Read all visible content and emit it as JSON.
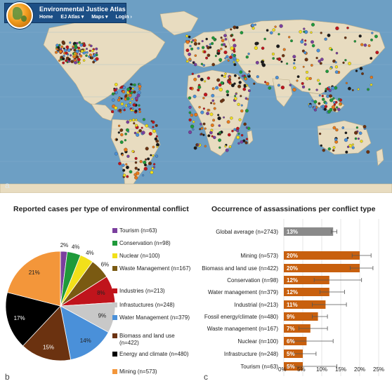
{
  "map_panel": {
    "label": "a",
    "site": {
      "title": "Environmental Justice Atlas",
      "nav": [
        "Home",
        "EJ Atlas ▾",
        "Maps ▾",
        "Login ›"
      ]
    },
    "colors": {
      "ocean": "#6d9fc4",
      "land": "#e8dcc0",
      "header": "#1c4f86"
    }
  },
  "pie_panel": {
    "label": "b",
    "chart_data": {
      "type": "pie",
      "title": "Reported cases per type of environmental conflict",
      "slices": [
        {
          "name": "Tourism (n=63)",
          "value": 2,
          "label": "2%",
          "color": "#7b3f9e"
        },
        {
          "name": "Conservation (n=98)",
          "value": 4,
          "label": "4%",
          "color": "#1f9a3a"
        },
        {
          "name": "Nuclear (n=100)",
          "value": 4,
          "label": "4%",
          "color": "#f2e01a"
        },
        {
          "name": "Waste Management (n=167)",
          "value": 6,
          "label": "6%",
          "color": "#7a5a12"
        },
        {
          "name": "Industries (n=213)",
          "value": 8,
          "label": "8%",
          "color": "#c0141c"
        },
        {
          "name": "Infrastuctures (n=248)",
          "value": 9,
          "label": "9%",
          "color": "#c8c8c8"
        },
        {
          "name": "Water Management (n=379)",
          "value": 14,
          "label": "14%",
          "color": "#4a90d9"
        },
        {
          "name": "Biomass and land use (n=422)",
          "value": 15,
          "label": "15%",
          "color": "#6b3210"
        },
        {
          "name": "Energy and climate (n=480)",
          "value": 17,
          "label": "17%",
          "color": "#000000"
        },
        {
          "name": "Mining (n=573)",
          "value": 21,
          "label": "21%",
          "color": "#f3963a"
        }
      ]
    }
  },
  "bar_panel": {
    "label": "c",
    "chart_data": {
      "type": "bar",
      "orientation": "horizontal",
      "title": "Occurrence of assassinations per conflict type",
      "categories": [
        "Global average (n=2743)",
        "Mining (n=573)",
        "Biomass and land use (n=422)",
        "Conservation (n=98)",
        "Water management (n=379)",
        "Industrial (n=213)",
        "Fossil energy/climate (n=480)",
        "Waste management (n=167)",
        "Nuclear (n=100)",
        "Infrastructure (n=248)",
        "Tourism (n=63)"
      ],
      "values": [
        13,
        20,
        20,
        12,
        12,
        11,
        9,
        7,
        6,
        5,
        5
      ],
      "value_labels": [
        "13%",
        "20%",
        "20%",
        "12%",
        "12%",
        "11%",
        "9%",
        "7%",
        "6%",
        "5%",
        "5%"
      ],
      "error_high": [
        14,
        23,
        23.5,
        20.5,
        16,
        16.5,
        11.5,
        11.5,
        13,
        8.5,
        14
      ],
      "error_low": [
        12.5,
        18,
        17.5,
        8,
        9.5,
        7.5,
        7.5,
        4,
        2.5,
        2.5,
        1
      ],
      "xticks": [
        "0%",
        "5%",
        "10%",
        "15%",
        "20%",
        "25%"
      ],
      "xlim": [
        0,
        25
      ],
      "colors": {
        "average": "#8a8a8a",
        "bars": "#c8600e"
      }
    }
  }
}
